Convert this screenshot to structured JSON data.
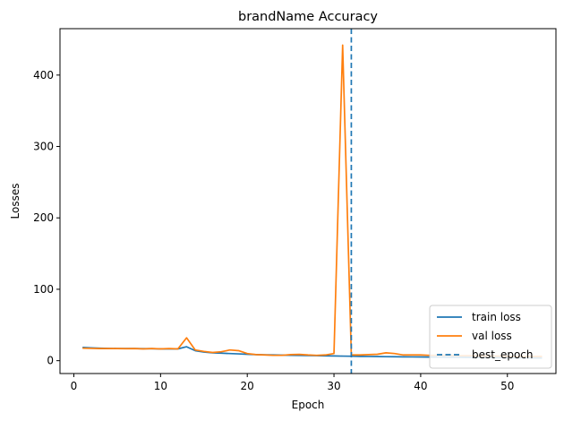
{
  "chart_data": {
    "type": "line",
    "title": "brandName Accuracy",
    "xlabel": "Epoch",
    "ylabel": "Losses",
    "xlim": [
      -1.6,
      55.6
    ],
    "ylim": [
      -18,
      465
    ],
    "xticks": [
      0,
      10,
      20,
      30,
      40,
      50
    ],
    "yticks": [
      0,
      100,
      200,
      300,
      400
    ],
    "grid": false,
    "legend_position": "lower right",
    "series": [
      {
        "name": "train loss",
        "color": "#1f77b4",
        "style": "solid",
        "x": [
          1,
          2,
          3,
          4,
          5,
          6,
          7,
          8,
          9,
          10,
          11,
          12,
          13,
          14,
          15,
          16,
          17,
          18,
          19,
          20,
          21,
          22,
          23,
          24,
          25,
          26,
          27,
          28,
          29,
          30,
          31,
          32,
          33,
          34,
          35,
          36,
          37,
          38,
          39,
          40,
          41,
          42,
          43,
          44,
          45,
          46,
          47,
          48,
          49,
          50,
          51,
          52,
          53,
          54
        ],
        "values": [
          18.5,
          18.0,
          17.5,
          17.2,
          17.0,
          17.0,
          17.0,
          16.8,
          16.8,
          16.5,
          16.5,
          16.5,
          19.5,
          14.0,
          12.0,
          11.0,
          10.5,
          10.0,
          9.5,
          9.0,
          8.5,
          8.2,
          8.0,
          7.8,
          7.6,
          7.4,
          7.2,
          7.0,
          6.8,
          6.6,
          6.4,
          6.2,
          6.0,
          5.9,
          5.8,
          5.6,
          5.5,
          5.4,
          5.3,
          5.2,
          5.1,
          5.0,
          4.9,
          4.8,
          4.7,
          4.6,
          4.5,
          4.4,
          4.3,
          4.2,
          4.1,
          4.0,
          3.9,
          3.8
        ]
      },
      {
        "name": "val loss",
        "color": "#ff7f0e",
        "style": "solid",
        "x": [
          1,
          2,
          3,
          4,
          5,
          6,
          7,
          8,
          9,
          10,
          11,
          12,
          13,
          14,
          15,
          16,
          17,
          18,
          19,
          20,
          21,
          22,
          23,
          24,
          25,
          26,
          27,
          28,
          29,
          30,
          31,
          32,
          33,
          34,
          35,
          36,
          37,
          38,
          39,
          40,
          41,
          42,
          43,
          44,
          45,
          46,
          47,
          48,
          49,
          50,
          51,
          52,
          53,
          54
        ],
        "values": [
          17.5,
          17.2,
          17.0,
          17.0,
          17.0,
          16.8,
          17.0,
          16.5,
          17.0,
          16.5,
          17.0,
          16.5,
          32.0,
          15.0,
          13.0,
          11.5,
          12.5,
          15.0,
          14.0,
          10.0,
          8.5,
          8.0,
          7.5,
          7.5,
          8.5,
          8.8,
          8.0,
          7.5,
          8.0,
          10.0,
          442.0,
          8.0,
          8.0,
          8.5,
          9.0,
          11.0,
          10.0,
          8.0,
          8.0,
          8.0,
          7.5,
          7.5,
          7.5,
          7.0,
          7.0,
          7.0,
          6.5,
          6.5,
          6.5,
          6.0,
          6.0,
          6.0,
          6.0,
          6.0
        ]
      },
      {
        "name": "best_epoch",
        "color": "#1f77b4",
        "style": "dashed",
        "vline_x": 32
      }
    ]
  }
}
